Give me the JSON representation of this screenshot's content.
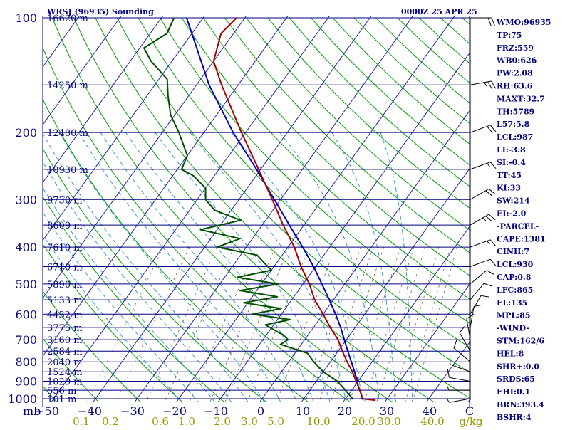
{
  "colors": {
    "axis": "#000080",
    "isobar": "#000080",
    "isotherm": "#2424a0",
    "dry_adiabat": "#00a000",
    "moist_adiabat": "#3399cc",
    "mixing_ratio": "#7a6a3a",
    "temperature": "#aa0000",
    "dewpoint": "#005000",
    "parcel": "#0000bb",
    "index_text": "#000080",
    "wind_barb": "#000000",
    "mixing_label": "#999900"
  },
  "chart_data": {
    "type": "skew-t",
    "title": "WRSJ (96935) Sounding",
    "timestamp": "0000Z 25 APR 25",
    "pressure_axis_label": "mb",
    "pressure_ticks": [
      100,
      200,
      300,
      400,
      500,
      600,
      700,
      800,
      900,
      1000
    ],
    "temperature_ticks": [
      "-50",
      "-40",
      "-30",
      "-20",
      "-10",
      "0",
      "10",
      "20",
      "30",
      "40",
      "C"
    ],
    "mixing_ratio_labels": [
      "0.1",
      "0.2",
      "0.6",
      "1.0",
      "2.0",
      "3.0",
      "5.0",
      "10.0",
      "20.0",
      "30.0",
      "40.0",
      "g/kg"
    ],
    "height_labels": [
      {
        "p": 100,
        "label": "16620 m"
      },
      {
        "p": 150,
        "label": "14250 m"
      },
      {
        "p": 200,
        "label": "12480 m"
      },
      {
        "p": 250,
        "label": "10930 m"
      },
      {
        "p": 300,
        "label": "9730 m"
      },
      {
        "p": 350,
        "label": "8609 m"
      },
      {
        "p": 400,
        "label": "7610 m"
      },
      {
        "p": 450,
        "label": "6710 m"
      },
      {
        "p": 500,
        "label": "5890 m"
      },
      {
        "p": 550,
        "label": "5133 m"
      },
      {
        "p": 600,
        "label": "4432 m"
      },
      {
        "p": 650,
        "label": "3775 m"
      },
      {
        "p": 700,
        "label": "3160 m"
      },
      {
        "p": 750,
        "label": "2584 m"
      },
      {
        "p": 800,
        "label": "2040 m"
      },
      {
        "p": 850,
        "label": "1524 m"
      },
      {
        "p": 900,
        "label": "1029 m"
      },
      {
        "p": 950,
        "label": "556 m"
      },
      {
        "p": 1000,
        "label": "101 m"
      }
    ],
    "temperature_profile": [
      {
        "p": 1010,
        "t": 27.5
      },
      {
        "p": 1000,
        "t": 24
      },
      {
        "p": 950,
        "t": 22
      },
      {
        "p": 900,
        "t": 19.5
      },
      {
        "p": 850,
        "t": 17
      },
      {
        "p": 800,
        "t": 14
      },
      {
        "p": 750,
        "t": 11
      },
      {
        "p": 700,
        "t": 8
      },
      {
        "p": 650,
        "t": 4
      },
      {
        "p": 600,
        "t": 0
      },
      {
        "p": 550,
        "t": -4.5
      },
      {
        "p": 500,
        "t": -8.5
      },
      {
        "p": 450,
        "t": -13.5
      },
      {
        "p": 400,
        "t": -18.5
      },
      {
        "p": 350,
        "t": -25
      },
      {
        "p": 300,
        "t": -32
      },
      {
        "p": 250,
        "t": -40.5
      },
      {
        "p": 200,
        "t": -51
      },
      {
        "p": 150,
        "t": -64
      },
      {
        "p": 130,
        "t": -70
      },
      {
        "p": 110,
        "t": -73
      },
      {
        "p": 100,
        "t": -72
      }
    ],
    "dewpoint_profile": [
      {
        "p": 1005,
        "t": 22
      },
      {
        "p": 950,
        "t": 18.5
      },
      {
        "p": 900,
        "t": 15
      },
      {
        "p": 850,
        "t": 10
      },
      {
        "p": 800,
        "t": 6
      },
      {
        "p": 760,
        "t": 3
      },
      {
        "p": 720,
        "t": -5
      },
      {
        "p": 700,
        "t": -4
      },
      {
        "p": 680,
        "t": -6
      },
      {
        "p": 660,
        "t": -9
      },
      {
        "p": 640,
        "t": -12
      },
      {
        "p": 620,
        "t": -7
      },
      {
        "p": 600,
        "t": -17
      },
      {
        "p": 580,
        "t": -11
      },
      {
        "p": 560,
        "t": -21
      },
      {
        "p": 540,
        "t": -14
      },
      {
        "p": 520,
        "t": -24
      },
      {
        "p": 500,
        "t": -16
      },
      {
        "p": 480,
        "t": -27
      },
      {
        "p": 460,
        "t": -20
      },
      {
        "p": 440,
        "t": -23
      },
      {
        "p": 420,
        "t": -26
      },
      {
        "p": 400,
        "t": -37
      },
      {
        "p": 380,
        "t": -33
      },
      {
        "p": 360,
        "t": -44
      },
      {
        "p": 340,
        "t": -36
      },
      {
        "p": 330,
        "t": -40
      },
      {
        "p": 320,
        "t": -44
      },
      {
        "p": 300,
        "t": -48
      },
      {
        "p": 280,
        "t": -50
      },
      {
        "p": 260,
        "t": -55
      },
      {
        "p": 250,
        "t": -59
      },
      {
        "p": 230,
        "t": -60
      },
      {
        "p": 200,
        "t": -66
      },
      {
        "p": 180,
        "t": -71
      },
      {
        "p": 160,
        "t": -75
      },
      {
        "p": 145,
        "t": -78
      },
      {
        "p": 130,
        "t": -85
      },
      {
        "p": 120,
        "t": -89
      },
      {
        "p": 110,
        "t": -86
      },
      {
        "p": 100,
        "t": -87
      }
    ],
    "parcel_profile": [
      {
        "p": 985,
        "t": 23.5
      },
      {
        "p": 930,
        "t": 21
      },
      {
        "p": 900,
        "t": 19.8
      },
      {
        "p": 850,
        "t": 17.5
      },
      {
        "p": 800,
        "t": 15
      },
      {
        "p": 750,
        "t": 12.3
      },
      {
        "p": 700,
        "t": 9.5
      },
      {
        "p": 650,
        "t": 6.5
      },
      {
        "p": 600,
        "t": 3
      },
      {
        "p": 550,
        "t": -1
      },
      {
        "p": 500,
        "t": -5.5
      },
      {
        "p": 450,
        "t": -10.5
      },
      {
        "p": 400,
        "t": -16.5
      },
      {
        "p": 350,
        "t": -23.5
      },
      {
        "p": 300,
        "t": -31.5
      },
      {
        "p": 250,
        "t": -41
      },
      {
        "p": 200,
        "t": -53
      },
      {
        "p": 150,
        "t": -67
      },
      {
        "p": 110,
        "t": -80
      },
      {
        "p": 100,
        "t": -84
      }
    ],
    "wind_barbs": [
      {
        "p": 100,
        "dir": 270,
        "spd": 20
      },
      {
        "p": 150,
        "dir": 260,
        "spd": 25
      },
      {
        "p": 200,
        "dir": 250,
        "spd": 20
      },
      {
        "p": 250,
        "dir": 250,
        "spd": 15
      },
      {
        "p": 300,
        "dir": 240,
        "spd": 20
      },
      {
        "p": 350,
        "dir": 240,
        "spd": 25
      },
      {
        "p": 400,
        "dir": 250,
        "spd": 15
      },
      {
        "p": 450,
        "dir": 250,
        "spd": 10
      },
      {
        "p": 500,
        "dir": 230,
        "spd": 10
      },
      {
        "p": 550,
        "dir": 220,
        "spd": 10
      },
      {
        "p": 600,
        "dir": 210,
        "spd": 10
      },
      {
        "p": 650,
        "dir": 190,
        "spd": 10
      },
      {
        "p": 700,
        "dir": 170,
        "spd": 10
      },
      {
        "p": 750,
        "dir": 150,
        "spd": 10
      },
      {
        "p": 800,
        "dir": 130,
        "spd": 10
      },
      {
        "p": 850,
        "dir": 110,
        "spd": 10
      },
      {
        "p": 900,
        "dir": 100,
        "spd": 10
      },
      {
        "p": 950,
        "dir": 90,
        "spd": 5
      },
      {
        "p": 1000,
        "dir": 80,
        "spd": 5
      }
    ],
    "indices": [
      "WMO:96935",
      "TP:75",
      "FRZ:559",
      "WB0:626",
      "PW:2.08",
      "RH:63.6",
      "MAXT:32.7",
      "TH:5789",
      "L57:5.8",
      "LCL:987",
      "LI:-3.8",
      "SI:-0.4",
      "TT:45",
      "KI:33",
      "SW:214",
      "EI:-2.0",
      "-PARCEL-",
      "CAPE:1381",
      "CINH:7",
      "LCL:930",
      "CAP:0.8",
      "LFC:865",
      "EL:135",
      "MPL:85",
      "-WIND-",
      "STM:162/6",
      "HEL:8",
      "SHR+:0.0",
      "SRDS:65",
      "EHI:0.1",
      "BRN:393.4",
      "BSHR:4"
    ]
  }
}
